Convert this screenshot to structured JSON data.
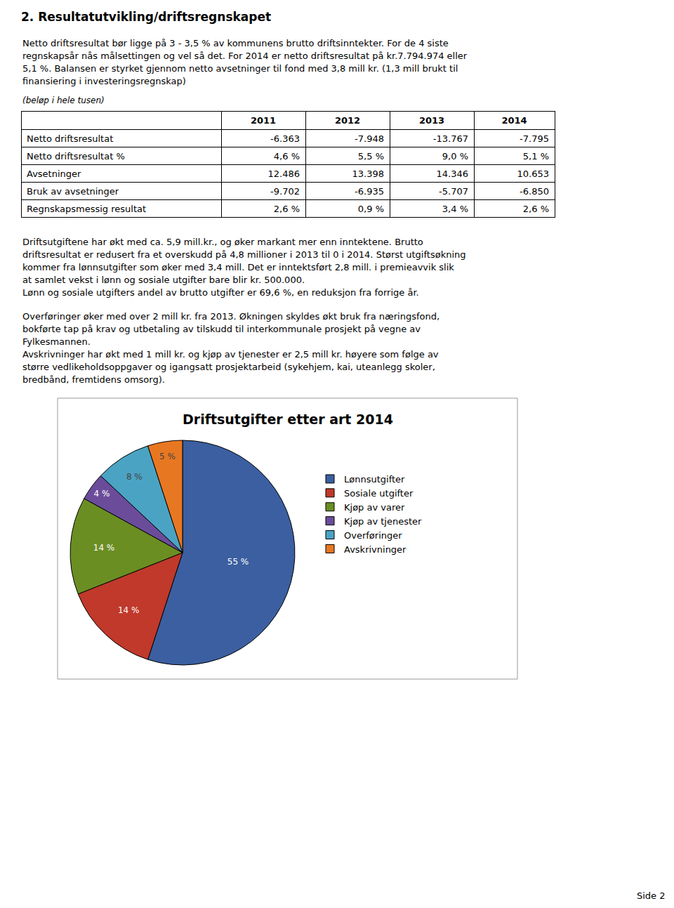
{
  "chart_data": [
    {
      "type": "table",
      "title": "2. Resultatutvikling/driftsregnskapet",
      "subtitle": [
        [
          "Netto driftsresultat bør ligge på 3 - 3,5 % av kommunens brutto driftsinntekter. For de 4 siste",
          "regnskapsår nås målsettingen og vel så det. For 2014 er netto driftsresultat på kr.7.794.974 eller",
          "5,1 %. Balansen er styrket gjennom netto avsetninger til fond med 3,8 mill kr. (1,3 mill brukt til",
          "finansiering i investeringsregnskap)"
        ]
      ],
      "annotations": [
        "(beløp i hele tusen)"
      ],
      "columns": [
        null,
        "2011",
        "2012",
        "2013",
        "2014"
      ],
      "rows": [
        [
          "Netto driftsresultat",
          "-6.363",
          "-7.948",
          "-13.767",
          "-7.795"
        ],
        [
          "Netto driftsresultat %",
          "4,6 %",
          "5,5 %",
          "9,0 %",
          "5,1 %"
        ],
        [
          "Avsetninger",
          "12.486",
          "13.398",
          "14.346",
          "10.653"
        ],
        [
          "Bruk av avsetninger",
          "-9.702",
          "-6.935",
          "-5.707",
          "-6.850"
        ],
        [
          "Regnskapsmessig resultat",
          "2,6 %",
          "0,9 %",
          "3,4 %",
          "2,6 %"
        ]
      ]
    },
    {
      "type": "pie",
      "title": "Driftsutgifter etter art 2014",
      "subtitle": [
        [
          "Driftsutgiftene har økt med ca. 5,9 mill.kr., og øker markant mer enn inntektene. Brutto",
          "driftsresultat er redusert fra et overskudd på 4,8 millioner i 2013 til 0 i 2014. Størst utgiftsøkning",
          "kommer fra lønnsutgifter som øker med 3,4 mill. Det er inntektsført 2,8 mill. i premieavvik slik",
          "at samlet vekst i lønn og sosiale utgifter bare blir kr. 500.000.",
          "Lønn og sosiale utgifters andel av brutto utgifter er 69,6 %, en reduksjon fra forrige år."
        ],
        [
          "Overføringer øker med over 2 mill kr. fra 2013. Økningen skyldes økt bruk fra næringsfond,",
          "bokførte tap på krav og utbetaling av tilskudd til interkommunale prosjekt på vegne av",
          "Fylkesmannen.",
          "Avskrivninger har økt med 1 mill kr. og kjøp av tjenester er 2,5 mill kr. høyere som følge av",
          "større vedlikeholdsoppgaver og igangsatt prosjektarbeid (sykehjem, kai, uteanlegg skoler,",
          "bredbånd, fremtidens omsorg)."
        ]
      ],
      "categories": [
        "Lønnsutgifter",
        "Sosiale utgifter",
        "Kjøp av varer",
        "Kjøp av tjenester",
        "Overføringer",
        "Avskrivninger"
      ],
      "values": [
        55,
        14,
        14,
        4,
        8,
        5
      ],
      "value_labels": [
        "55 %",
        "14 %",
        "14 %",
        "4 %",
        "8 %",
        "5 %"
      ],
      "colors": [
        "#3B5FA0",
        "#C0392B",
        "#6B8E23",
        "#6B4C9A",
        "#4BA3C3",
        "#E87722"
      ],
      "data_labels": true,
      "legend": "right",
      "annotations": [
        "Side 2"
      ]
    }
  ]
}
